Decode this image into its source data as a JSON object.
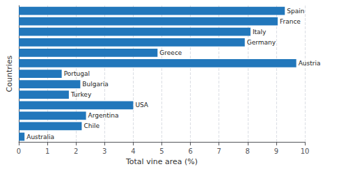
{
  "chart_data": {
    "type": "bar",
    "orientation": "horizontal",
    "categories": [
      "Spain",
      "France",
      "Italy",
      "Germany",
      "Greece",
      "Austria",
      "Portugal",
      "Bulgaria",
      "Turkey",
      "USA",
      "Argentina",
      "Chile",
      "Australia"
    ],
    "values": [
      9.3,
      9.05,
      8.1,
      7.9,
      4.85,
      9.7,
      1.5,
      2.15,
      1.75,
      4.0,
      2.35,
      2.2,
      0.2
    ],
    "color": "#2277BB",
    "xlabel": "Total vine area (%)",
    "ylabel": "Countries",
    "xlim": [
      0,
      10
    ],
    "xticks": [
      0,
      1,
      2,
      3,
      4,
      5,
      6,
      7,
      8,
      9,
      10
    ],
    "grid": true,
    "tick_labels": "x"
  }
}
